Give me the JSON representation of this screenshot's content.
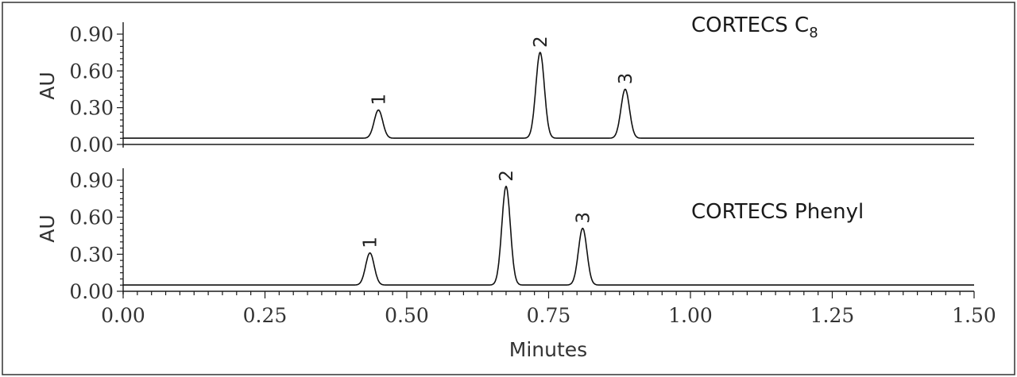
{
  "chart_data": [
    {
      "type": "line",
      "title_main": "CORTECS C",
      "title_sub": "8",
      "ylabel": "AU",
      "yticks": [
        "0.00",
        "0.30",
        "0.60",
        "0.90"
      ],
      "ylim": [
        0,
        1.0
      ],
      "xlim": [
        0,
        1.5
      ],
      "peaks": [
        {
          "label": "1",
          "time": 0.45,
          "height": 0.23
        },
        {
          "label": "2",
          "time": 0.735,
          "height": 0.7
        },
        {
          "label": "3",
          "time": 0.885,
          "height": 0.4
        }
      ]
    },
    {
      "type": "line",
      "title_main": "CORTECS Phenyl",
      "ylabel": "AU",
      "yticks": [
        "0.00",
        "0.30",
        "0.60",
        "0.90"
      ],
      "ylim": [
        0,
        1.0
      ],
      "xlim": [
        0,
        1.5
      ],
      "xlabel": "Minutes",
      "xticks": [
        "0.00",
        "0.25",
        "0.50",
        "0.75",
        "1.00",
        "1.25",
        "1.50"
      ],
      "peaks": [
        {
          "label": "1",
          "time": 0.435,
          "height": 0.26
        },
        {
          "label": "2",
          "time": 0.675,
          "height": 0.8
        },
        {
          "label": "3",
          "time": 0.81,
          "height": 0.46
        }
      ]
    }
  ]
}
